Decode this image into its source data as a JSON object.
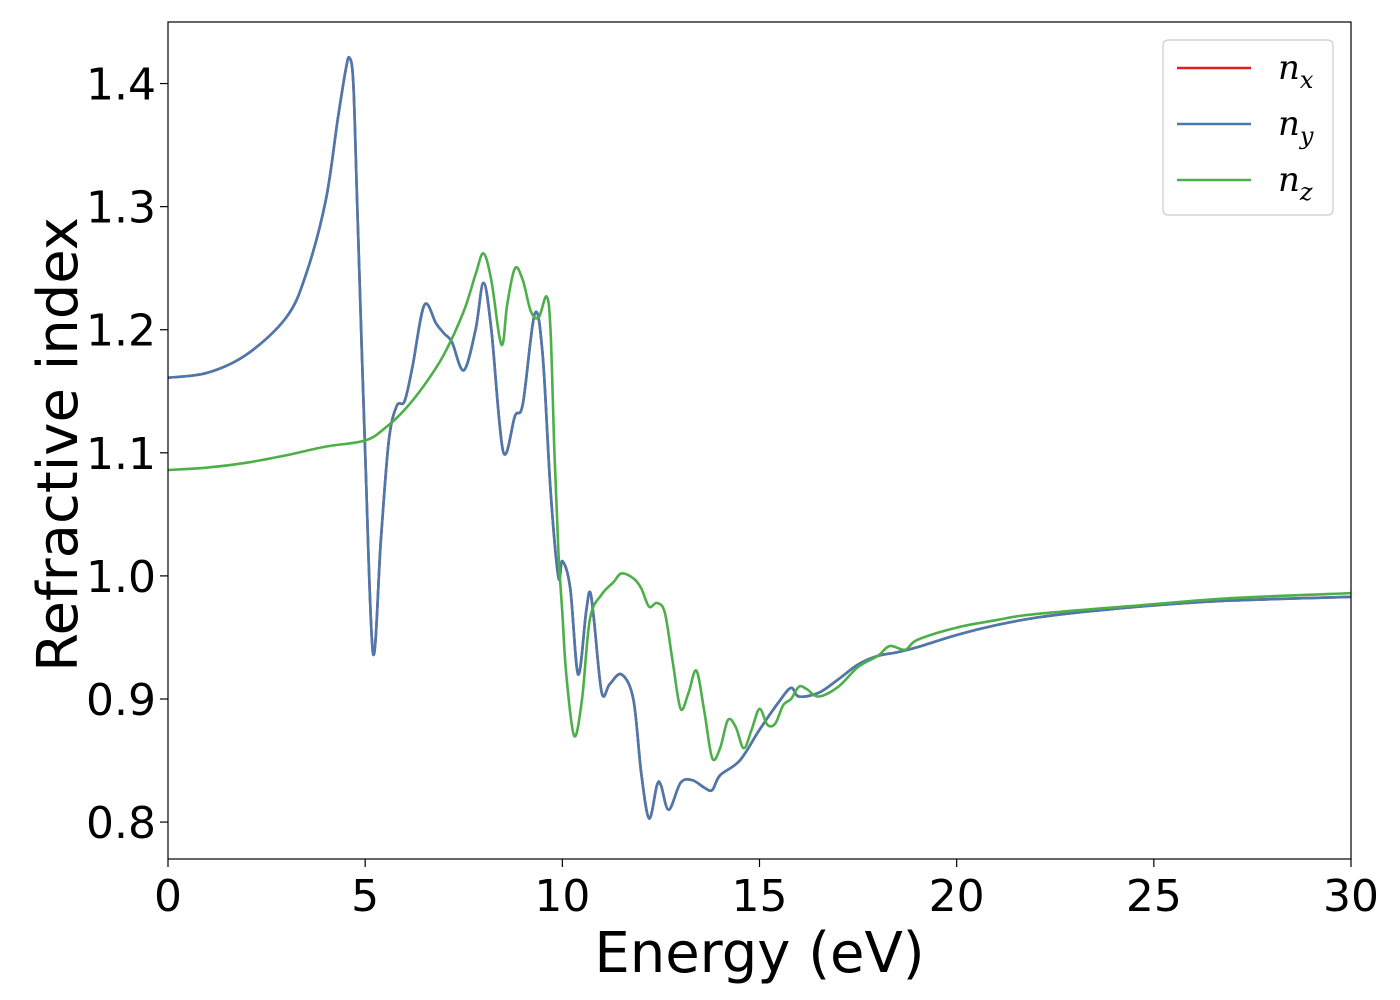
{
  "chart_data": {
    "type": "line",
    "xlabel": "Energy (eV)",
    "ylabel": "Refractive index",
    "xlim": [
      0,
      30
    ],
    "ylim": [
      0.77,
      1.45
    ],
    "xticks": [
      0,
      5,
      10,
      15,
      20,
      25,
      30
    ],
    "xtick_labels": [
      "0",
      "5",
      "10",
      "15",
      "20",
      "25",
      "30"
    ],
    "yticks": [
      0.8,
      0.9,
      1.0,
      1.1,
      1.2,
      1.3,
      1.4
    ],
    "ytick_labels": [
      "0.8",
      "0.9",
      "1.0",
      "1.1",
      "1.2",
      "1.3",
      "1.4"
    ],
    "grid": false,
    "legend_position": "top-right",
    "series": [
      {
        "name": "n_x",
        "label_base": "n",
        "label_sub": "x",
        "color": "#e41a1c",
        "x": [
          0,
          1,
          2,
          3,
          3.5,
          4,
          4.3,
          4.5,
          4.6,
          4.7,
          4.8,
          5.0,
          5.2,
          5.4,
          5.6,
          5.8,
          6.0,
          6.2,
          6.5,
          6.8,
          7.0,
          7.2,
          7.5,
          7.8,
          8.0,
          8.2,
          8.5,
          8.8,
          9.0,
          9.3,
          9.5,
          9.7,
          9.9,
          10.0,
          10.2,
          10.4,
          10.6,
          10.7,
          10.8,
          11.0,
          11.2,
          11.5,
          11.8,
          12.0,
          12.2,
          12.4,
          12.5,
          12.7,
          13.0,
          13.3,
          13.6,
          13.8,
          14.0,
          14.5,
          15.0,
          15.5,
          15.8,
          16.0,
          16.5,
          17.0,
          17.5,
          18.0,
          18.5,
          19.0,
          20.0,
          21.0,
          22.0,
          23.0,
          25.0,
          27.0,
          30.0
        ],
        "values": [
          1.161,
          1.165,
          1.18,
          1.21,
          1.245,
          1.305,
          1.37,
          1.41,
          1.421,
          1.4,
          1.3,
          1.1,
          0.937,
          1.03,
          1.11,
          1.138,
          1.142,
          1.17,
          1.22,
          1.205,
          1.197,
          1.19,
          1.167,
          1.2,
          1.238,
          1.2,
          1.101,
          1.13,
          1.14,
          1.213,
          1.18,
          1.07,
          0.999,
          1.012,
          0.99,
          0.92,
          0.97,
          0.987,
          0.965,
          0.905,
          0.912,
          0.92,
          0.9,
          0.84,
          0.803,
          0.83,
          0.83,
          0.81,
          0.832,
          0.834,
          0.828,
          0.826,
          0.838,
          0.85,
          0.875,
          0.898,
          0.909,
          0.902,
          0.905,
          0.916,
          0.928,
          0.935,
          0.938,
          0.942,
          0.952,
          0.96,
          0.966,
          0.97,
          0.976,
          0.98,
          0.983
        ]
      },
      {
        "name": "n_y",
        "label_base": "n",
        "label_sub": "y",
        "color": "#4a7aad",
        "x": [
          0,
          1,
          2,
          3,
          3.5,
          4,
          4.3,
          4.5,
          4.6,
          4.7,
          4.8,
          5.0,
          5.2,
          5.4,
          5.6,
          5.8,
          6.0,
          6.2,
          6.5,
          6.8,
          7.0,
          7.2,
          7.5,
          7.8,
          8.0,
          8.2,
          8.5,
          8.8,
          9.0,
          9.3,
          9.5,
          9.7,
          9.9,
          10.0,
          10.2,
          10.4,
          10.6,
          10.7,
          10.8,
          11.0,
          11.2,
          11.5,
          11.8,
          12.0,
          12.2,
          12.4,
          12.5,
          12.7,
          13.0,
          13.3,
          13.6,
          13.8,
          14.0,
          14.5,
          15.0,
          15.5,
          15.8,
          16.0,
          16.5,
          17.0,
          17.5,
          18.0,
          18.5,
          19.0,
          20.0,
          21.0,
          22.0,
          23.0,
          25.0,
          27.0,
          30.0
        ],
        "values": [
          1.161,
          1.165,
          1.18,
          1.21,
          1.245,
          1.305,
          1.37,
          1.41,
          1.421,
          1.4,
          1.3,
          1.1,
          0.937,
          1.03,
          1.11,
          1.138,
          1.142,
          1.17,
          1.22,
          1.205,
          1.197,
          1.19,
          1.167,
          1.2,
          1.238,
          1.2,
          1.101,
          1.13,
          1.14,
          1.213,
          1.18,
          1.07,
          0.999,
          1.012,
          0.99,
          0.92,
          0.97,
          0.987,
          0.965,
          0.905,
          0.912,
          0.92,
          0.9,
          0.84,
          0.803,
          0.83,
          0.83,
          0.81,
          0.832,
          0.834,
          0.828,
          0.826,
          0.838,
          0.85,
          0.875,
          0.898,
          0.909,
          0.902,
          0.905,
          0.916,
          0.928,
          0.935,
          0.938,
          0.942,
          0.952,
          0.96,
          0.966,
          0.97,
          0.976,
          0.98,
          0.983
        ]
      },
      {
        "name": "n_z",
        "label_base": "n",
        "label_sub": "z",
        "color": "#4daf4a",
        "x": [
          0,
          1,
          2,
          3,
          4,
          5,
          5.5,
          6.0,
          6.5,
          7.0,
          7.5,
          7.8,
          8.0,
          8.2,
          8.4,
          8.5,
          8.6,
          8.8,
          9.0,
          9.2,
          9.4,
          9.6,
          9.7,
          9.8,
          9.9,
          10.0,
          10.1,
          10.3,
          10.5,
          10.7,
          11.0,
          11.3,
          11.5,
          11.8,
          12.0,
          12.2,
          12.4,
          12.6,
          12.8,
          13.0,
          13.2,
          13.4,
          13.6,
          13.8,
          14.0,
          14.2,
          14.4,
          14.6,
          14.8,
          15.0,
          15.2,
          15.4,
          15.6,
          15.8,
          16.0,
          16.2,
          16.5,
          17.0,
          17.5,
          18.0,
          18.3,
          18.7,
          19.0,
          20.0,
          21.0,
          22.0,
          25.0,
          27.0,
          30.0
        ],
        "values": [
          1.086,
          1.088,
          1.092,
          1.098,
          1.105,
          1.11,
          1.12,
          1.135,
          1.155,
          1.18,
          1.215,
          1.245,
          1.262,
          1.24,
          1.195,
          1.19,
          1.22,
          1.25,
          1.24,
          1.215,
          1.21,
          1.227,
          1.2,
          1.1,
          1.02,
          0.97,
          0.92,
          0.87,
          0.9,
          0.965,
          0.985,
          0.995,
          1.002,
          0.998,
          0.99,
          0.975,
          0.978,
          0.97,
          0.93,
          0.892,
          0.905,
          0.923,
          0.89,
          0.852,
          0.86,
          0.883,
          0.877,
          0.86,
          0.875,
          0.892,
          0.879,
          0.88,
          0.895,
          0.9,
          0.91,
          0.908,
          0.902,
          0.91,
          0.926,
          0.935,
          0.943,
          0.94,
          0.948,
          0.958,
          0.964,
          0.969,
          0.977,
          0.982,
          0.986
        ]
      }
    ]
  }
}
